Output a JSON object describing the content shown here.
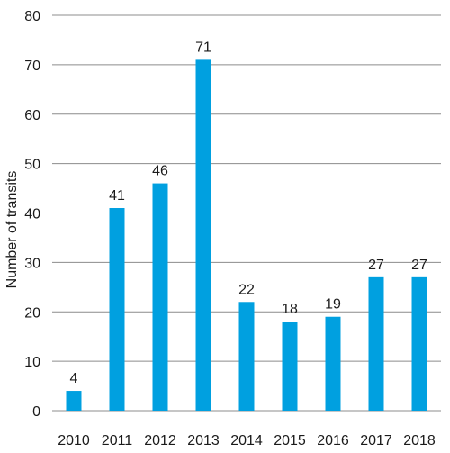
{
  "chart_data": {
    "type": "bar",
    "title": "",
    "xlabel": "",
    "ylabel": "Number of transits",
    "categories": [
      "2010",
      "2011",
      "2012",
      "2013",
      "2014",
      "2015",
      "2016",
      "2017",
      "2018"
    ],
    "values": [
      4,
      41,
      46,
      71,
      22,
      18,
      19,
      27,
      27
    ],
    "ylim": [
      0,
      80
    ],
    "yticks": [
      0,
      10,
      20,
      30,
      40,
      50,
      60,
      70,
      80
    ],
    "grid": true,
    "data_labels": true,
    "bar_color": "#00a0e0"
  }
}
